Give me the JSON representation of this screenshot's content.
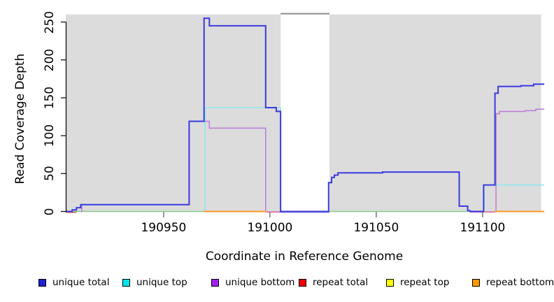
{
  "figure": {
    "background": "#ffffff"
  },
  "chart_data": {
    "type": "line",
    "subtype": "step-coverage",
    "title": "",
    "xlabel": "Coordinate in Reference Genome",
    "ylabel": "Read Coverage Depth",
    "xlim": [
      190904,
      191129
    ],
    "ylim": [
      0,
      257
    ],
    "grid": false,
    "x_ticks": [
      190950,
      191000,
      191050,
      191100
    ],
    "y_ticks": [
      0,
      50,
      100,
      150,
      200,
      250
    ],
    "shaded_regions": {
      "fill": "#dcdcdc",
      "top_value": 260,
      "regions": [
        {
          "from": 190904,
          "to": 191005
        },
        {
          "from": 191028,
          "to": 191127.5
        }
      ],
      "gap_top_line": {
        "from": 191005,
        "to": 191028,
        "color": "#8a8a8a"
      }
    },
    "baseline_zero_segments": [
      {
        "name": "repeat-total-left",
        "color": "#e04848",
        "from": 190904,
        "to": 190909,
        "dy": 1.2,
        "w": 1.5
      },
      {
        "name": "unique-top-zero-left",
        "color": "#8cc98c",
        "from": 190904,
        "to": 190969,
        "dy": 0,
        "w": 1.5
      },
      {
        "name": "pre-gap-pink",
        "color": "#d75f96",
        "from": 190998,
        "to": 191005,
        "dy": 0.8,
        "w": 1.5
      },
      {
        "name": "gap-lavender",
        "color": "#9b8fe8",
        "from": 191005,
        "to": 191028,
        "dy": 1.2,
        "w": 1.5
      },
      {
        "name": "unique-top-zero-mid",
        "color": "#8cc98c",
        "from": 191028,
        "to": 191093,
        "dy": 0,
        "w": 1.5
      },
      {
        "name": "pre-rise-pink",
        "color": "#d75f96",
        "from": 191094,
        "to": 191106,
        "dy": 0.8,
        "w": 1.5
      }
    ],
    "series": [
      {
        "name": "unique top",
        "color": "#8fe7f0",
        "width": 1.6,
        "segments": [
          {
            "pts": [
              [
                190969.5,
                0
              ],
              [
                190969.5,
                137
              ],
              [
                191005,
                0
              ]
            ],
            "end": 191005
          },
          {
            "pts": [
              [
                191100.5,
                0
              ],
              [
                191100.7,
                35
              ]
            ],
            "end": 191129
          }
        ]
      },
      {
        "name": "unique bottom",
        "color": "#bd80d8",
        "width": 1.6,
        "segments": [
          {
            "pts": [
              [
                190911,
                0
              ],
              [
                190911.5,
                9
              ],
              [
                190962,
                119
              ],
              [
                190971.5,
                110
              ],
              [
                190998,
                0
              ]
            ],
            "end": 190998
          },
          {
            "pts": [
              [
                191106,
                0
              ],
              [
                191106.3,
                129
              ],
              [
                191108,
                132
              ],
              [
                191120,
                133
              ],
              [
                191125,
                135
              ]
            ],
            "end": 191129
          }
        ]
      },
      {
        "name": "repeat bottom",
        "color": "#ff9820",
        "width": 2,
        "segments": [
          {
            "pts": [
              [
                190969,
                0
              ]
            ],
            "end": 190998
          },
          {
            "pts": [
              [
                191106,
                0
              ]
            ],
            "end": 191129
          }
        ]
      },
      {
        "name": "unique total",
        "color": "#3a3ae0",
        "width": 2,
        "segments": [
          {
            "pts": [
              [
                190904,
                0
              ],
              [
                190907,
                2
              ],
              [
                190909,
                5
              ],
              [
                190911,
                9
              ],
              [
                190962,
                119
              ],
              [
                190969,
                255
              ],
              [
                190971.5,
                245
              ],
              [
                190998,
                137
              ],
              [
                191003,
                132
              ],
              [
                191005,
                0
              ],
              [
                191027.6,
                38
              ],
              [
                191029,
                45
              ],
              [
                191030.3,
                48
              ],
              [
                191032,
                51
              ],
              [
                191053,
                52
              ],
              [
                191089,
                7
              ],
              [
                191093,
                1
              ],
              [
                191094,
                0
              ],
              [
                191100.5,
                35
              ],
              [
                191105.8,
                156
              ],
              [
                191107.3,
                165
              ],
              [
                191118,
                166
              ],
              [
                191124,
                168
              ]
            ],
            "end": 191129
          }
        ]
      }
    ],
    "axis": {
      "y_axis_color": "#000000",
      "x_tick_color": "#555555"
    }
  },
  "legend": {
    "items": [
      {
        "label": "unique total",
        "color": "#1f1fd3"
      },
      {
        "label": "unique top",
        "color": "#00e5ee"
      },
      {
        "label": "unique bottom",
        "color": "#a020f0"
      },
      {
        "label": "repeat total",
        "color": "#ee0000"
      },
      {
        "label": "repeat top",
        "color": "#ffff00"
      },
      {
        "label": "repeat bottom",
        "color": "#ff9800"
      }
    ]
  }
}
